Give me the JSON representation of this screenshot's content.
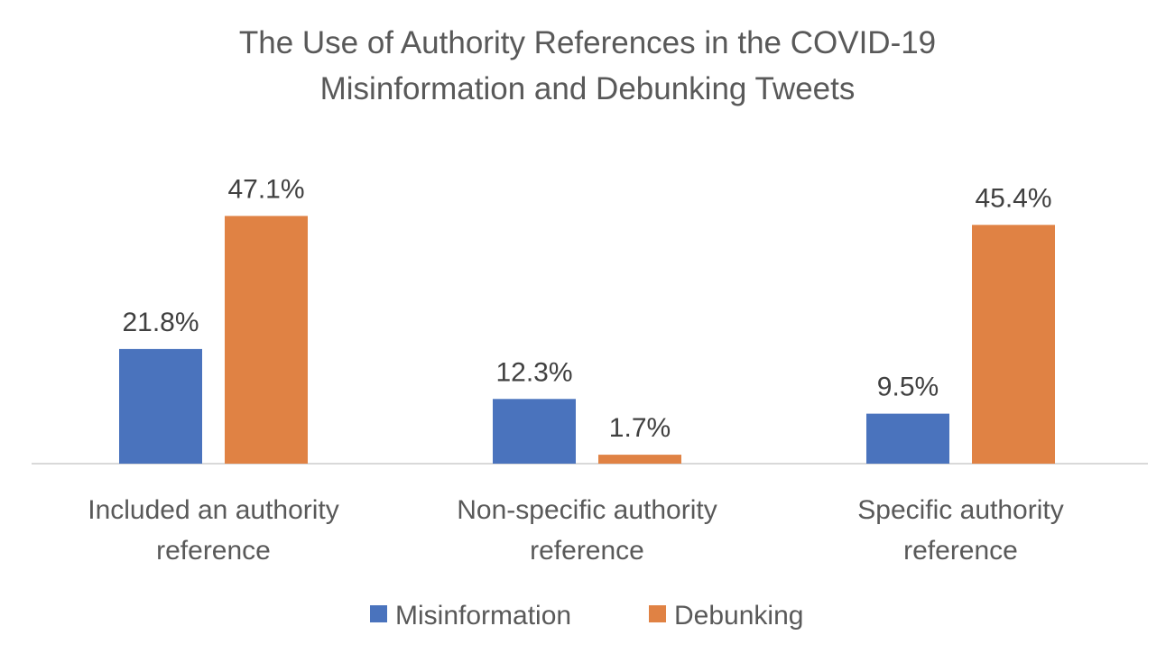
{
  "chart_data": {
    "type": "bar",
    "title": [
      "The Use of Authority References in the COVID-19",
      "Misinformation and Debunking Tweets"
    ],
    "categories": [
      [
        "Included an authority",
        "reference"
      ],
      [
        "Non-specific authority",
        "reference"
      ],
      [
        "Specific authority",
        "reference"
      ]
    ],
    "series": [
      {
        "name": "Misinformation",
        "values": [
          21.8,
          12.3,
          9.5
        ],
        "labels": [
          "21.8%",
          "12.3%",
          "9.5%"
        ],
        "color": "#4A73BD"
      },
      {
        "name": "Debunking",
        "values": [
          47.1,
          1.7,
          45.4
        ],
        "labels": [
          "47.1%",
          "1.7%",
          "45.4%"
        ],
        "color": "#E08244"
      }
    ],
    "ylim": [
      0,
      55
    ],
    "grid": false,
    "legend": "bottom",
    "xlabel": "",
    "ylabel": ""
  }
}
